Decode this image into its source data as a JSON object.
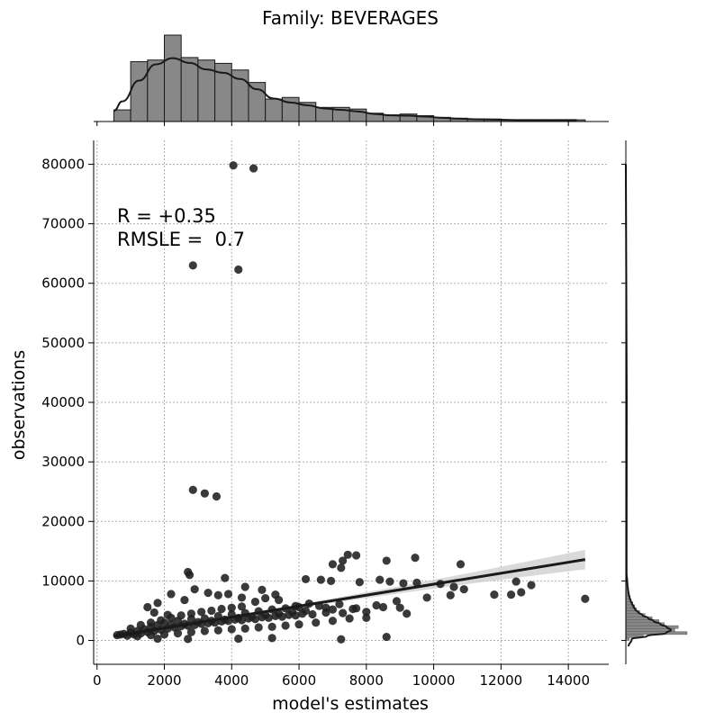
{
  "chart_data": {
    "type": "scatter",
    "title": "Family: BEVERAGES",
    "xlabel": "model's estimates",
    "ylabel": "observations",
    "xlim": [
      -100,
      15200
    ],
    "ylim": [
      -4000,
      84000
    ],
    "x_ticks": [
      0,
      2000,
      4000,
      6000,
      8000,
      10000,
      12000,
      14000
    ],
    "y_ticks": [
      0,
      10000,
      20000,
      30000,
      40000,
      50000,
      60000,
      70000,
      80000
    ],
    "x_tick_labels": [
      "0",
      "2000",
      "4000",
      "6000",
      "8000",
      "10000",
      "12000",
      "14000"
    ],
    "y_tick_labels": [
      "0",
      "10000",
      "20000",
      "30000",
      "40000",
      "50000",
      "60000",
      "70000",
      "80000"
    ],
    "grid": true,
    "annotation": [
      "R = +0.35",
      "RMSLE =  0.7"
    ],
    "regression": {
      "x": [
        500,
        14500
      ],
      "y": [
        700,
        13600
      ]
    },
    "points": [
      [
        4050,
        79800
      ],
      [
        4650,
        79300
      ],
      [
        2850,
        63000
      ],
      [
        4200,
        62300
      ],
      [
        2850,
        25300
      ],
      [
        3200,
        24700
      ],
      [
        3550,
        24200
      ],
      [
        7450,
        14400
      ],
      [
        7700,
        14300
      ],
      [
        9450,
        13900
      ],
      [
        10800,
        12800
      ],
      [
        7300,
        13400
      ],
      [
        8600,
        13400
      ],
      [
        7000,
        12800
      ],
      [
        7250,
        12200
      ],
      [
        6200,
        10300
      ],
      [
        6650,
        10200
      ],
      [
        6950,
        10000
      ],
      [
        7800,
        9800
      ],
      [
        8400,
        10200
      ],
      [
        8700,
        9900
      ],
      [
        9100,
        9600
      ],
      [
        9500,
        9700
      ],
      [
        10200,
        9500
      ],
      [
        10600,
        9000
      ],
      [
        10900,
        8600
      ],
      [
        11800,
        7700
      ],
      [
        12300,
        7700
      ],
      [
        12600,
        8100
      ],
      [
        12900,
        9300
      ],
      [
        12450,
        9900
      ],
      [
        14500,
        7000
      ],
      [
        10500,
        7600
      ],
      [
        9800,
        7200
      ],
      [
        8900,
        6600
      ],
      [
        8300,
        5900
      ],
      [
        7700,
        5400
      ],
      [
        7200,
        6100
      ],
      [
        6800,
        5500
      ],
      [
        6300,
        6200
      ],
      [
        5900,
        5800
      ],
      [
        5400,
        6800
      ],
      [
        5000,
        7100
      ],
      [
        4700,
        6500
      ],
      [
        4300,
        7200
      ],
      [
        3900,
        7800
      ],
      [
        3600,
        7600
      ],
      [
        3300,
        8000
      ],
      [
        2900,
        8600
      ],
      [
        2700,
        11500
      ],
      [
        2750,
        11000
      ],
      [
        3800,
        10500
      ],
      [
        4400,
        9000
      ],
      [
        4900,
        8500
      ],
      [
        5300,
        7700
      ],
      [
        2200,
        7800
      ],
      [
        2600,
        6800
      ],
      [
        1800,
        6300
      ],
      [
        1500,
        5600
      ],
      [
        1700,
        4700
      ],
      [
        2100,
        4300
      ],
      [
        7250,
        200
      ],
      [
        8600,
        600
      ],
      [
        5200,
        400
      ],
      [
        4200,
        300
      ],
      [
        2700,
        250
      ],
      [
        1800,
        300
      ],
      [
        600,
        900
      ],
      [
        700,
        1000
      ],
      [
        800,
        1100
      ],
      [
        900,
        800
      ],
      [
        1000,
        1300
      ],
      [
        1100,
        1000
      ],
      [
        1200,
        1600
      ],
      [
        1300,
        1200
      ],
      [
        1400,
        1900
      ],
      [
        1500,
        1400
      ],
      [
        1600,
        2300
      ],
      [
        1700,
        1600
      ],
      [
        1800,
        2600
      ],
      [
        1900,
        1800
      ],
      [
        2000,
        3000
      ],
      [
        2100,
        2000
      ],
      [
        2200,
        2700
      ],
      [
        2300,
        2200
      ],
      [
        2400,
        3300
      ],
      [
        2500,
        2400
      ],
      [
        2600,
        2800
      ],
      [
        2700,
        2500
      ],
      [
        2800,
        3600
      ],
      [
        2900,
        2600
      ],
      [
        3000,
        3100
      ],
      [
        3100,
        2800
      ],
      [
        3200,
        3700
      ],
      [
        3300,
        2900
      ],
      [
        3400,
        3300
      ],
      [
        3500,
        3000
      ],
      [
        3600,
        4100
      ],
      [
        3700,
        3200
      ],
      [
        3800,
        3500
      ],
      [
        3900,
        3300
      ],
      [
        4000,
        4400
      ],
      [
        4100,
        3500
      ],
      [
        4200,
        3800
      ],
      [
        4300,
        3400
      ],
      [
        4400,
        4600
      ],
      [
        4500,
        3700
      ],
      [
        4600,
        4000
      ],
      [
        4700,
        3600
      ],
      [
        4800,
        4900
      ],
      [
        4900,
        3900
      ],
      [
        5000,
        4300
      ],
      [
        5100,
        3800
      ],
      [
        5200,
        5200
      ],
      [
        5300,
        4100
      ],
      [
        5400,
        4500
      ],
      [
        5500,
        4000
      ],
      [
        5600,
        5400
      ],
      [
        5700,
        4300
      ],
      [
        5800,
        4800
      ],
      [
        5900,
        4200
      ],
      [
        6000,
        5600
      ],
      [
        6100,
        4500
      ],
      [
        6200,
        5000
      ],
      [
        6400,
        4400
      ],
      [
        6600,
        5800
      ],
      [
        6800,
        4700
      ],
      [
        7000,
        5200
      ],
      [
        7300,
        4600
      ],
      [
        7600,
        5300
      ],
      [
        8000,
        4800
      ],
      [
        8500,
        5600
      ],
      [
        9000,
        5500
      ],
      [
        1000,
        2000
      ],
      [
        1300,
        2600
      ],
      [
        1600,
        3000
      ],
      [
        1900,
        3400
      ],
      [
        2200,
        3800
      ],
      [
        2500,
        4200
      ],
      [
        2800,
        4500
      ],
      [
        3100,
        4800
      ],
      [
        3400,
        5000
      ],
      [
        3700,
        5300
      ],
      [
        4000,
        5500
      ],
      [
        4300,
        5700
      ],
      [
        1200,
        700
      ],
      [
        1600,
        900
      ],
      [
        2000,
        1000
      ],
      [
        2400,
        1200
      ],
      [
        2800,
        1400
      ],
      [
        3200,
        1600
      ],
      [
        3600,
        1700
      ],
      [
        4000,
        1900
      ],
      [
        4400,
        2000
      ],
      [
        4800,
        2200
      ],
      [
        5200,
        2300
      ],
      [
        5600,
        2500
      ],
      [
        6000,
        2700
      ],
      [
        6500,
        3000
      ],
      [
        7000,
        3300
      ],
      [
        7500,
        3700
      ],
      [
        8000,
        3800
      ],
      [
        9200,
        4500
      ]
    ],
    "hist_x": {
      "bin_edges": [
        500,
        1000,
        1500,
        2000,
        2500,
        3000,
        3500,
        4000,
        4500,
        5000,
        5500,
        6000,
        6500,
        7000,
        7500,
        8000,
        8500,
        9000,
        9500,
        10000,
        10500,
        11000,
        11500,
        12000,
        12500,
        13000,
        13500,
        14000,
        14500
      ],
      "counts": [
        14,
        72,
        74,
        104,
        77,
        74,
        70,
        62,
        47,
        27,
        29,
        23,
        17,
        17,
        15,
        10,
        8,
        9,
        7,
        5,
        4,
        3,
        3,
        2,
        2,
        2,
        2,
        2
      ]
    },
    "hist_y": {
      "bin_edges": [
        0,
        500,
        1000,
        1500,
        2000,
        2500,
        3000,
        3500,
        4000,
        4500,
        5000,
        5500,
        6000,
        6500,
        7000,
        7500,
        8000,
        8500,
        9000,
        9500,
        10000,
        10500,
        11000,
        11500,
        12000,
        12500,
        13000,
        13500,
        14000,
        14500
      ],
      "counts": [
        4,
        20,
        70,
        56,
        60,
        44,
        38,
        30,
        22,
        16,
        12,
        10,
        8,
        6,
        5,
        4,
        3,
        3,
        2,
        2,
        2,
        1,
        1,
        1,
        1,
        1,
        1,
        1,
        1
      ]
    }
  },
  "colors": {
    "points": "#1f1f1f",
    "line": "#1a1a1a",
    "bars": "#888888",
    "band": "#cfcfcf",
    "grid": "#b0b0b0"
  }
}
